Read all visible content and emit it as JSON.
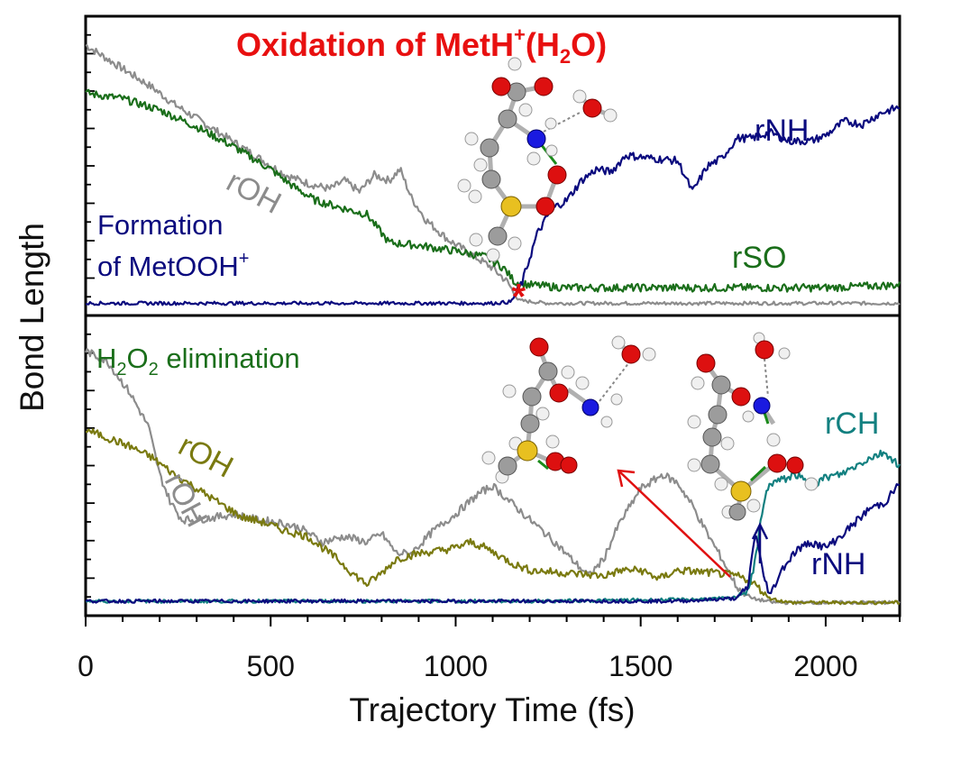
{
  "chart_data": {
    "type": "line",
    "title": "Oxidation of MetH+(H2O)",
    "title_parts": {
      "main": "Oxidation of MetH",
      "sup": "+",
      "open": "(H",
      "sub": "2",
      "close": "O)"
    },
    "xlabel": "Trajectory Time (fs)",
    "ylabel": "Bond Length",
    "xlim": [
      0,
      2200
    ],
    "x_ticks": [
      0,
      500,
      1000,
      1500,
      2000
    ],
    "x_tick_labels": [
      "0",
      "500",
      "1000",
      "1500",
      "2000"
    ],
    "colors": {
      "navy": "#0a0a7e",
      "gray": "#8c8c8c",
      "green": "#1a6e1a",
      "olive": "#7a7a10",
      "teal": "#128080",
      "red": "#e01010",
      "title": "#e81010"
    },
    "panels": [
      {
        "name": "top",
        "ylim": [
          0,
          10
        ],
        "series": [
          {
            "name": "rOH",
            "color": "gray",
            "x": [
              0,
              60,
              120,
              180,
              240,
              300,
              360,
              420,
              480,
              540,
              600,
              660,
              700,
              740,
              780,
              820,
              850,
              880,
              920,
              980,
              1040,
              1100,
              1140,
              1170,
              1250,
              1400,
              1600,
              1800,
              2000,
              2200
            ],
            "y": [
              9.2,
              8.7,
              8.2,
              7.7,
              7.1,
              6.6,
              6.1,
              5.6,
              5.1,
              4.6,
              4.3,
              4.1,
              4.4,
              4.0,
              4.6,
              4.4,
              4.8,
              3.8,
              3.0,
              2.3,
              1.8,
              1.3,
              0.8,
              0.15,
              0.05,
              0.05,
              0.05,
              0.05,
              0.05,
              0.05
            ]
          },
          {
            "name": "rSO",
            "color": "green",
            "x": [
              0,
              100,
              200,
              300,
              400,
              500,
              560,
              620,
              700,
              760,
              820,
              900,
              1000,
              1080,
              1130,
              1160,
              1200,
              1300,
              1400,
              1600,
              1800,
              2000,
              2200
            ],
            "y": [
              7.5,
              7.3,
              6.9,
              6.3,
              5.6,
              4.8,
              4.2,
              3.7,
              3.4,
              3.2,
              2.2,
              2.1,
              1.9,
              1.7,
              1.3,
              0.8,
              0.7,
              0.6,
              0.6,
              0.6,
              0.6,
              0.6,
              0.7
            ]
          },
          {
            "name": "rNH",
            "color": "navy",
            "x": [
              0,
              200,
              400,
              600,
              800,
              1000,
              1100,
              1150,
              1180,
              1220,
              1260,
              1300,
              1340,
              1380,
              1420,
              1460,
              1520,
              1600,
              1640,
              1680,
              1720,
              1760,
              1800,
              1850,
              1900,
              1960,
              2000,
              2050,
              2100,
              2150,
              2200
            ],
            "y": [
              0.05,
              0.05,
              0.05,
              0.05,
              0.05,
              0.05,
              0.05,
              0.1,
              0.8,
              2.5,
              3.4,
              3.7,
              4.4,
              4.8,
              4.7,
              5.3,
              5.2,
              5.1,
              4.0,
              4.9,
              5.2,
              5.9,
              5.9,
              6.1,
              5.8,
              5.8,
              6.0,
              6.5,
              6.4,
              6.8,
              7.0
            ]
          }
        ],
        "labels": {
          "rOH": "rOH",
          "rNH": "rNH",
          "rSO": "rSO",
          "formation_line1": "Formation",
          "formation_line2": "of MetOOH",
          "formation_sup": "+"
        },
        "marker": {
          "x": 1170,
          "y": 0.3,
          "symbol": "*"
        }
      },
      {
        "name": "bottom",
        "ylim": [
          0,
          10
        ],
        "series": [
          {
            "name": "rOH",
            "color": "gray",
            "x": [
              0,
              60,
              120,
              170,
              200,
              230,
              260,
              300,
              360,
              400,
              460,
              520,
              580,
              640,
              700,
              760,
              800,
              840,
              880,
              940,
              1000,
              1060,
              1100,
              1150,
              1200,
              1260,
              1320,
              1360,
              1400,
              1440,
              1500,
              1560,
              1600,
              1640,
              1680,
              1720,
              1760,
              1800,
              1860,
              1900,
              2000,
              2200
            ],
            "y": [
              9.0,
              8.6,
              7.5,
              6.3,
              4.6,
              3.6,
              3.0,
              3.0,
              3.1,
              3.2,
              3.0,
              2.9,
              2.7,
              2.2,
              2.4,
              2.2,
              2.5,
              1.8,
              1.8,
              2.6,
              3.2,
              3.9,
              4.2,
              3.6,
              3.0,
              2.3,
              1.5,
              1.0,
              1.6,
              2.8,
              4.1,
              4.6,
              4.3,
              3.5,
              2.5,
              1.6,
              0.6,
              0.2,
              0.05,
              0.05,
              0.05,
              0.05
            ]
          },
          {
            "name": "rOH",
            "color": "olive",
            "x": [
              0,
              60,
              120,
              180,
              240,
              300,
              360,
              420,
              480,
              540,
              600,
              640,
              680,
              720,
              760,
              800,
              840,
              900,
              960,
              1000,
              1040,
              1080,
              1120,
              1160,
              1200,
              1300,
              1400,
              1450,
              1500,
              1550,
              1600,
              1700,
              1760,
              1800,
              1850,
              1900,
              2000,
              2200
            ],
            "y": [
              6.2,
              5.9,
              5.6,
              5.2,
              4.6,
              4.1,
              3.6,
              3.1,
              2.9,
              2.6,
              2.4,
              2.0,
              1.6,
              1.1,
              0.7,
              1.1,
              1.6,
              1.8,
              1.9,
              2.0,
              2.2,
              2.0,
              1.7,
              1.4,
              1.2,
              1.1,
              1.0,
              1.2,
              1.2,
              0.9,
              1.2,
              1.1,
              1.0,
              0.8,
              0.2,
              0.05,
              0.05,
              0.05
            ]
          },
          {
            "name": "rCH",
            "color": "teal",
            "x": [
              0,
              400,
              800,
              1200,
              1600,
              1750,
              1790,
              1810,
              1830,
              1850,
              1880,
              1920,
              1960,
              2000,
              2040,
              2080,
              2120,
              2160,
              2200
            ],
            "y": [
              0.1,
              0.1,
              0.1,
              0.1,
              0.15,
              0.2,
              0.5,
              1.5,
              3.5,
              4.3,
              4.4,
              4.6,
              4.2,
              4.5,
              4.6,
              4.9,
              5.2,
              5.4,
              4.9
            ]
          },
          {
            "name": "rNH",
            "color": "navy",
            "x": [
              0,
              1600,
              1760,
              1790,
              1810,
              1830,
              1850,
              1880,
              1920,
              1960,
              2000,
              2040,
              2080,
              2120,
              2160,
              2200
            ],
            "y": [
              0.1,
              0.1,
              0.2,
              0.6,
              2.6,
              1.1,
              0.3,
              1.2,
              1.9,
              2.2,
              2.0,
              2.4,
              2.9,
              3.4,
              3.6,
              4.3
            ]
          }
        ],
        "labels": {
          "rOH_olive": "rOH",
          "rOH_gray": "rOH",
          "rCH": "rCH",
          "rNH": "rNH",
          "elim_h": "H",
          "elim_sub1": "2",
          "elim_o": "O",
          "elim_sub2": "2",
          "elim_rest": " elimination"
        }
      }
    ]
  }
}
